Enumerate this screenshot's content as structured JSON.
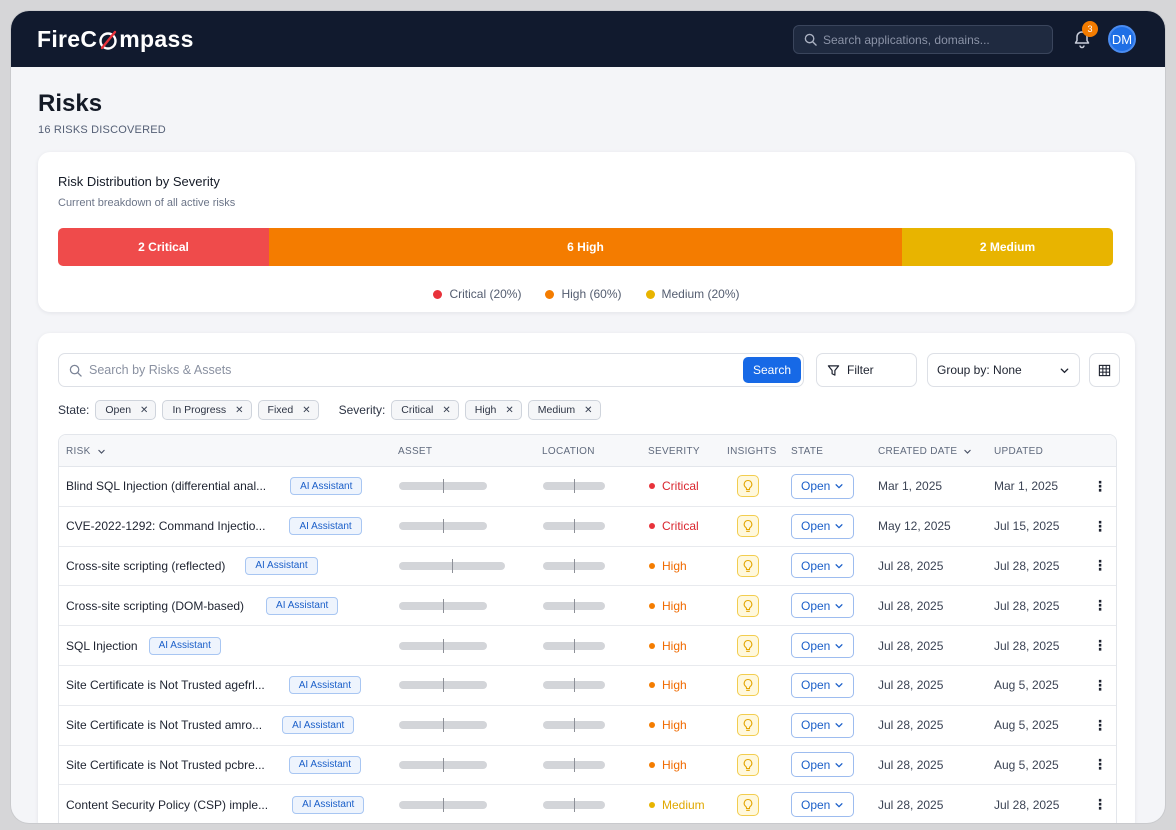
{
  "header": {
    "logo_prefix": "FireC",
    "logo_suffix": "mpass",
    "search_placeholder": "Search applications, domains...",
    "notification_count": "3",
    "avatar_initials": "DM"
  },
  "page": {
    "title": "Risks",
    "subtitle": "16 RISKS DISCOVERED"
  },
  "distribution": {
    "title": "Risk Distribution by Severity",
    "subtitle": "Current breakdown of all active risks",
    "segments": [
      {
        "label": "2 Critical",
        "fraction": 0.2,
        "color": "#ef4b4b"
      },
      {
        "label": "6 High",
        "fraction": 0.6,
        "color": "#f47c00"
      },
      {
        "label": "2 Medium",
        "fraction": 0.2,
        "color": "#e8b400"
      }
    ],
    "legend": [
      {
        "label": "Critical (20%)",
        "color": "#e8323a"
      },
      {
        "label": "High (60%)",
        "color": "#f47c00"
      },
      {
        "label": "Medium (20%)",
        "color": "#e8b400"
      }
    ]
  },
  "toolbar": {
    "search_placeholder": "Search by Risks & Assets",
    "search_button": "Search",
    "filter_label": "Filter",
    "group_by_label": "Group by: None"
  },
  "filters": {
    "state_label": "State:",
    "state_chips": [
      "Open",
      "In Progress",
      "Fixed"
    ],
    "severity_label": "Severity:",
    "severity_chips": [
      "Critical",
      "High",
      "Medium"
    ]
  },
  "table": {
    "columns": {
      "risk": "RISK",
      "asset": "ASSET",
      "location": "LOCATION",
      "severity": "SEVERITY",
      "insights": "INSIGHTS",
      "state": "STATE",
      "created": "CREATED DATE",
      "updated": "UPDATED"
    },
    "ai_label": "AI Assistant",
    "rows": [
      {
        "risk": "Blind SQL Injection (differential anal...",
        "severity": "Critical",
        "sev_color": "#e8323a",
        "sev_text_color": "#d9262e",
        "state": "Open",
        "created": "Mar 1, 2025",
        "updated": "Mar 1, 2025"
      },
      {
        "risk": "CVE-2022-1292: Command Injectio...",
        "severity": "Critical",
        "sev_color": "#e8323a",
        "sev_text_color": "#d9262e",
        "state": "Open",
        "created": "May 12, 2025",
        "updated": "Jul 15, 2025"
      },
      {
        "risk": "Cross-site scripting (reflected)",
        "severity": "High",
        "sev_color": "#f47c00",
        "sev_text_color": "#f06a00",
        "state": "Open",
        "created": "Jul 28, 2025",
        "updated": "Jul 28, 2025"
      },
      {
        "risk": "Cross-site scripting (DOM-based)",
        "severity": "High",
        "sev_color": "#f47c00",
        "sev_text_color": "#f06a00",
        "state": "Open",
        "created": "Jul 28, 2025",
        "updated": "Jul 28, 2025"
      },
      {
        "risk": "SQL Injection",
        "severity": "High",
        "sev_color": "#f47c00",
        "sev_text_color": "#f06a00",
        "state": "Open",
        "created": "Jul 28, 2025",
        "updated": "Jul 28, 2025"
      },
      {
        "risk": "Site Certificate is Not Trusted agefrl...",
        "severity": "High",
        "sev_color": "#f47c00",
        "sev_text_color": "#f06a00",
        "state": "Open",
        "created": "Jul 28, 2025",
        "updated": "Aug 5, 2025"
      },
      {
        "risk": "Site Certificate is Not Trusted amro...",
        "severity": "High",
        "sev_color": "#f47c00",
        "sev_text_color": "#f06a00",
        "state": "Open",
        "created": "Jul 28, 2025",
        "updated": "Aug 5, 2025"
      },
      {
        "risk": "Site Certificate is Not Trusted pcbre...",
        "severity": "High",
        "sev_color": "#f47c00",
        "sev_text_color": "#f06a00",
        "state": "Open",
        "created": "Jul 28, 2025",
        "updated": "Aug 5, 2025"
      },
      {
        "risk": "Content Security Policy (CSP) imple...",
        "severity": "Medium",
        "sev_color": "#e8b400",
        "sev_text_color": "#e0a800",
        "state": "Open",
        "created": "Jul 28, 2025",
        "updated": "Jul 28, 2025"
      }
    ]
  }
}
